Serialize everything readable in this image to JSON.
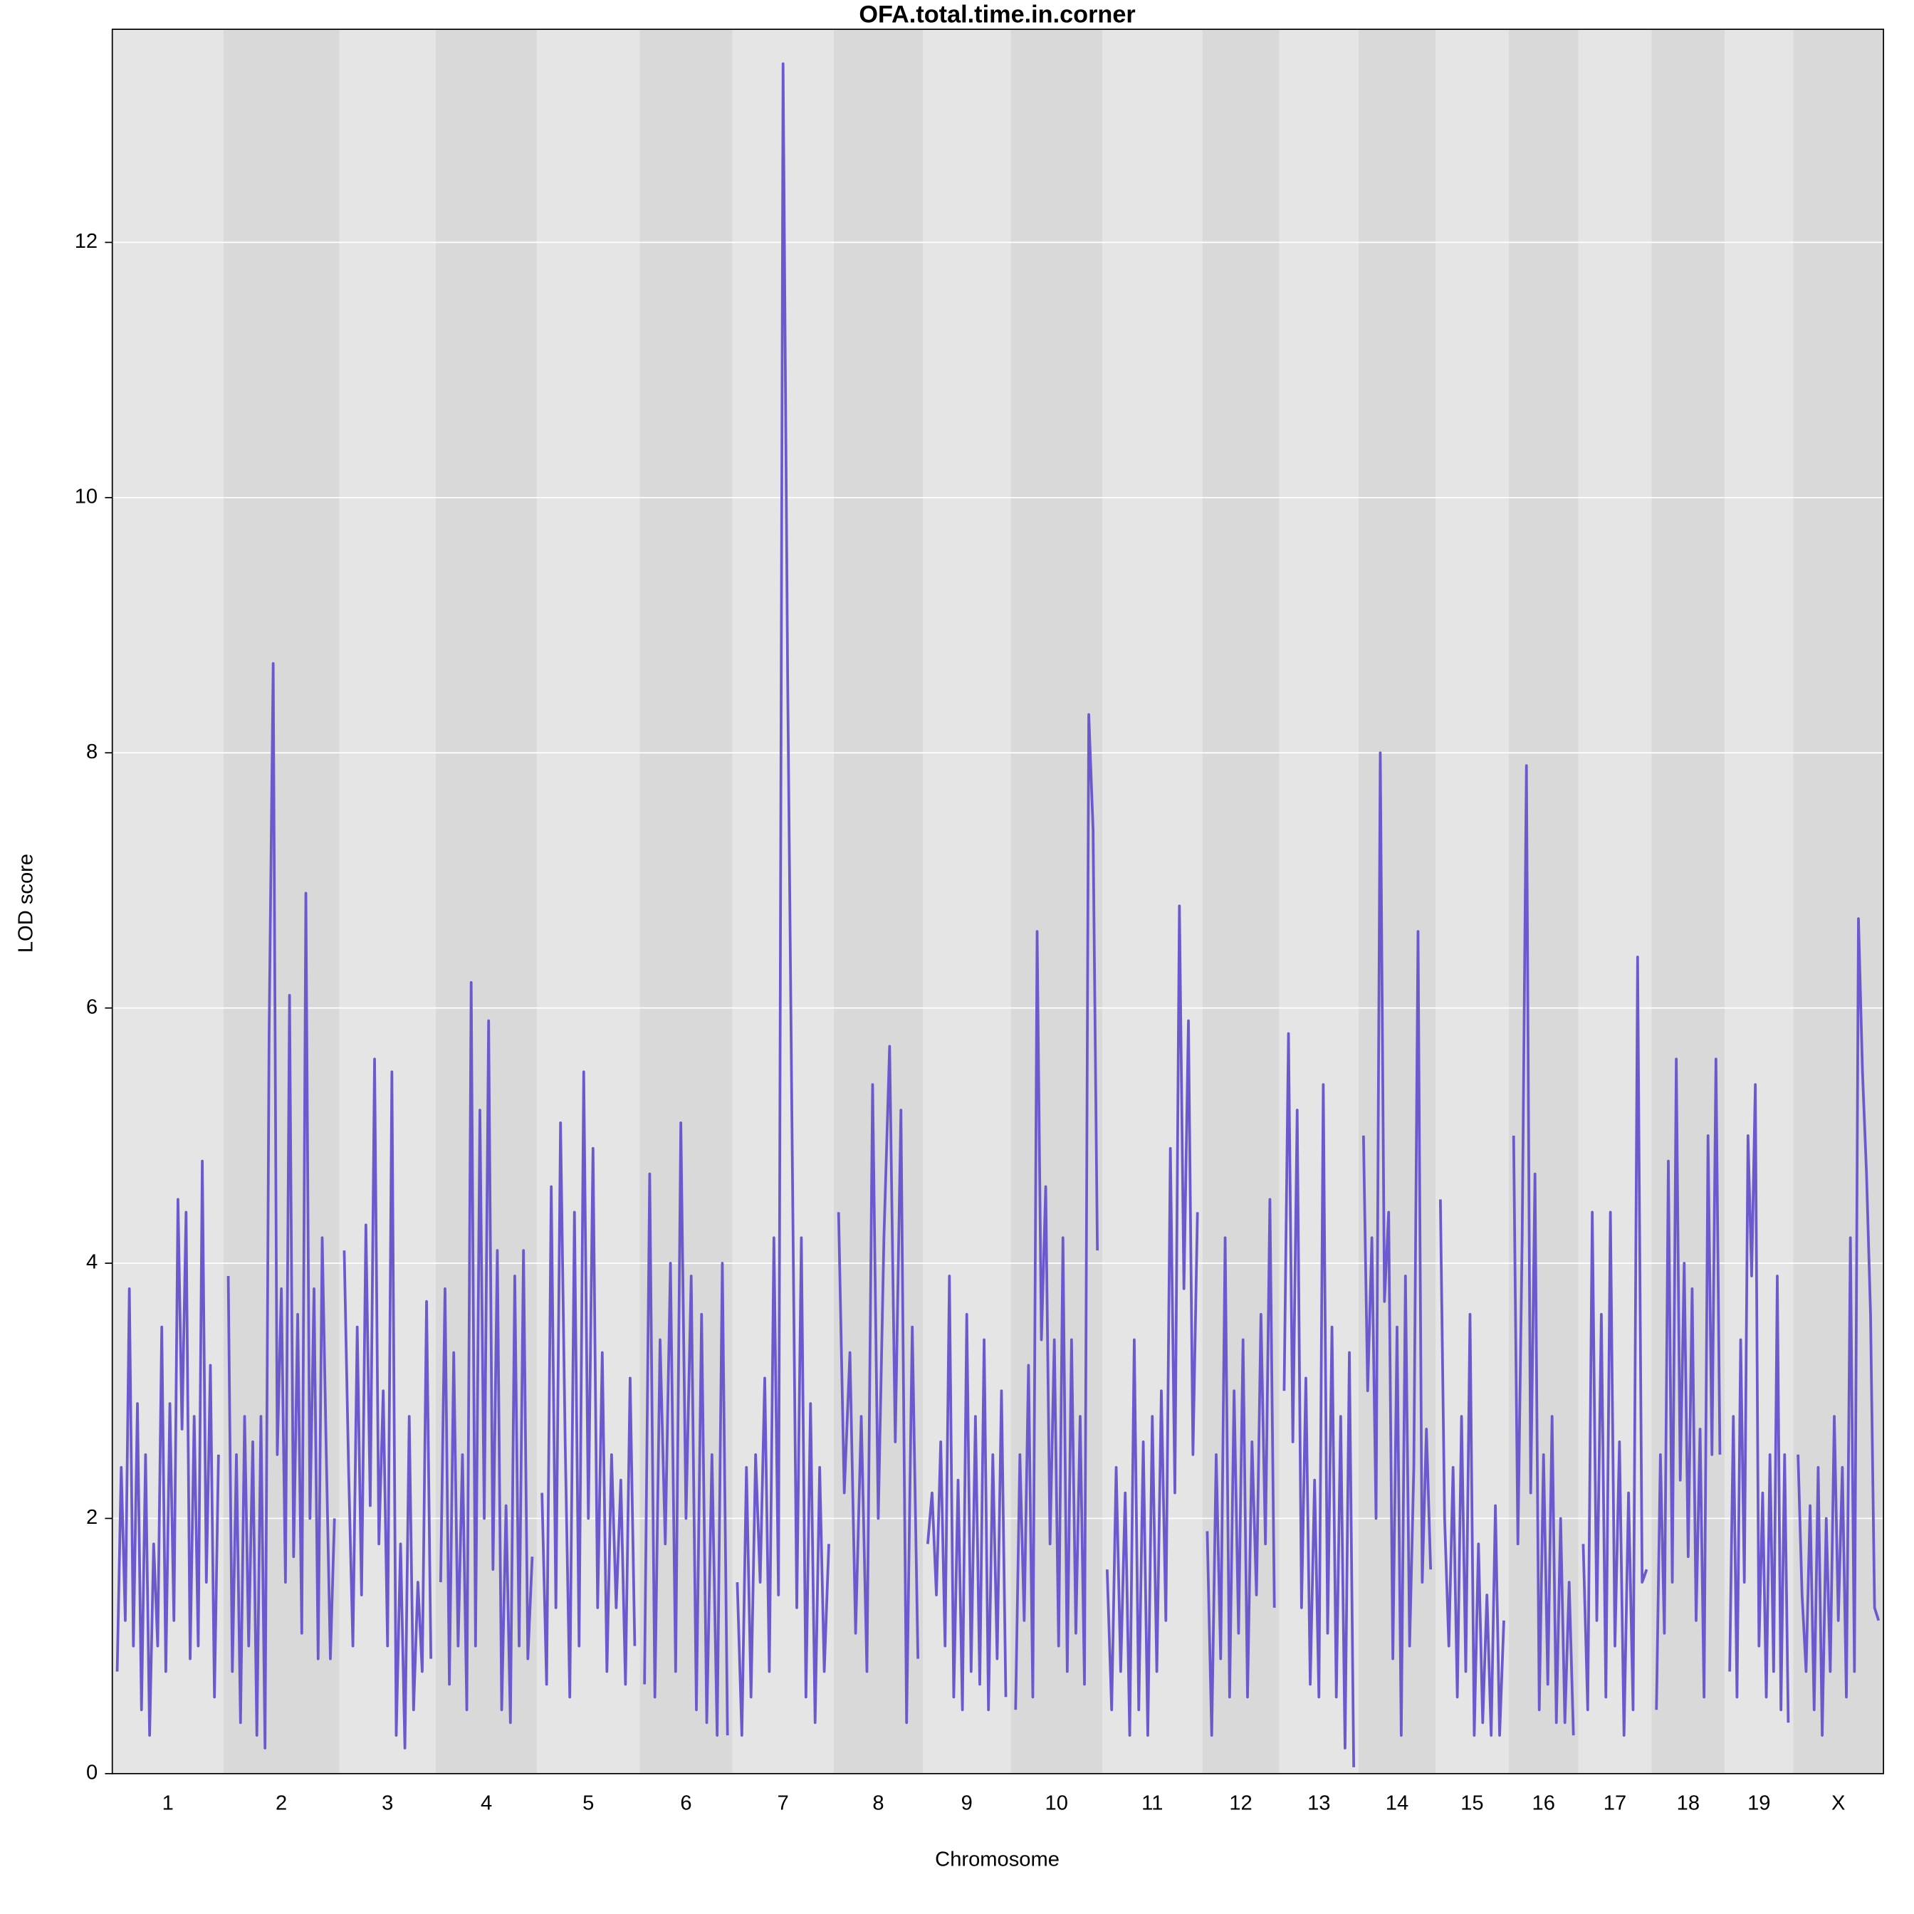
{
  "chart_data": {
    "type": "line",
    "title": "OFA.total.time.in.corner",
    "xlabel": "Chromosome",
    "ylabel": "LOD score",
    "color": "#6a5acd",
    "grid": true,
    "xlim": [
      0,
      1451
    ],
    "ylim": [
      0,
      13.67
    ],
    "yticks": [
      0,
      2,
      4,
      6,
      8,
      10,
      12
    ],
    "chromosomes": [
      {
        "name": "1",
        "start": 0,
        "end": 91,
        "values": [
          0.8,
          2.4,
          1.2,
          3.8,
          1.0,
          2.9,
          0.5,
          2.5,
          0.3,
          1.8,
          1.0,
          3.5,
          0.8,
          2.9,
          1.2,
          4.5,
          2.7,
          4.4,
          0.9,
          2.8,
          1.0,
          4.8,
          1.5,
          3.2,
          0.6,
          2.5
        ]
      },
      {
        "name": "2",
        "start": 91,
        "end": 186,
        "values": [
          3.9,
          0.8,
          2.5,
          0.4,
          2.8,
          1.0,
          2.6,
          0.3,
          2.8,
          0.2,
          5.8,
          8.7,
          2.5,
          3.8,
          1.5,
          6.1,
          1.7,
          3.6,
          1.1,
          6.9,
          2.0,
          3.8,
          0.9,
          4.2,
          2.5,
          0.9,
          2.0
        ]
      },
      {
        "name": "3",
        "start": 186,
        "end": 265,
        "values": [
          4.1,
          2.4,
          1.0,
          3.5,
          1.4,
          4.3,
          2.1,
          5.6,
          1.8,
          3.0,
          1.0,
          5.5,
          0.3,
          1.8,
          0.2,
          2.8,
          0.5,
          1.5,
          0.8,
          3.7,
          0.9
        ]
      },
      {
        "name": "4",
        "start": 265,
        "end": 348,
        "values": [
          1.5,
          3.8,
          0.7,
          3.3,
          1.0,
          2.5,
          0.5,
          6.2,
          1.0,
          5.2,
          2.0,
          5.9,
          1.6,
          4.1,
          0.5,
          2.1,
          0.4,
          3.9,
          1.0,
          4.1,
          0.9,
          1.7
        ]
      },
      {
        "name": "5",
        "start": 348,
        "end": 432,
        "values": [
          2.2,
          0.7,
          4.6,
          1.3,
          5.1,
          2.6,
          0.6,
          4.4,
          1.0,
          5.5,
          2.0,
          4.9,
          1.3,
          3.3,
          0.8,
          2.5,
          1.3,
          2.3,
          0.7,
          3.1,
          1.0
        ]
      },
      {
        "name": "6",
        "start": 432,
        "end": 508,
        "values": [
          0.7,
          4.7,
          0.6,
          3.4,
          1.8,
          4.0,
          0.8,
          5.1,
          2.0,
          3.9,
          0.5,
          3.6,
          0.4,
          2.5,
          0.3,
          4.0,
          0.3
        ]
      },
      {
        "name": "7",
        "start": 508,
        "end": 591,
        "values": [
          1.5,
          0.3,
          2.4,
          0.6,
          2.5,
          1.5,
          3.1,
          0.8,
          4.2,
          1.4,
          13.4,
          8.6,
          4.9,
          1.3,
          4.2,
          0.6,
          2.9,
          0.4,
          2.4,
          0.8,
          1.8
        ]
      },
      {
        "name": "8",
        "start": 591,
        "end": 664,
        "values": [
          4.4,
          2.2,
          3.3,
          1.1,
          2.8,
          0.8,
          5.4,
          2.0,
          4.2,
          5.7,
          2.6,
          5.2,
          0.4,
          3.5,
          0.9
        ]
      },
      {
        "name": "9",
        "start": 664,
        "end": 736,
        "values": [
          1.8,
          2.2,
          1.4,
          2.6,
          1.0,
          3.9,
          0.6,
          2.3,
          0.5,
          3.6,
          0.8,
          2.8,
          0.7,
          3.4,
          0.5,
          2.5,
          0.9,
          3.0,
          0.6
        ]
      },
      {
        "name": "10",
        "start": 736,
        "end": 811,
        "values": [
          0.5,
          2.5,
          1.2,
          3.2,
          0.6,
          6.6,
          3.4,
          4.6,
          1.8,
          3.4,
          1.0,
          4.2,
          0.8,
          3.4,
          1.1,
          2.8,
          0.7,
          8.3,
          7.4,
          4.1
        ]
      },
      {
        "name": "11",
        "start": 811,
        "end": 893,
        "values": [
          1.6,
          0.5,
          2.4,
          0.8,
          2.2,
          0.3,
          3.4,
          0.5,
          2.6,
          0.3,
          2.8,
          0.8,
          3.0,
          1.2,
          4.9,
          2.2,
          6.8,
          3.8,
          5.9,
          2.5,
          4.4
        ]
      },
      {
        "name": "12",
        "start": 893,
        "end": 956,
        "values": [
          1.9,
          0.3,
          2.5,
          0.9,
          4.2,
          0.6,
          3.0,
          1.1,
          3.4,
          0.6,
          2.6,
          1.4,
          3.6,
          1.8,
          4.5,
          1.3
        ]
      },
      {
        "name": "13",
        "start": 956,
        "end": 1021,
        "values": [
          3.0,
          5.8,
          2.6,
          5.2,
          1.3,
          3.1,
          0.7,
          2.3,
          0.6,
          5.4,
          1.1,
          3.5,
          0.6,
          2.8,
          0.2,
          3.3,
          0.05
        ]
      },
      {
        "name": "14",
        "start": 1021,
        "end": 1084,
        "values": [
          5.0,
          3.0,
          4.2,
          2.0,
          8.0,
          3.7,
          4.4,
          0.9,
          3.5,
          0.3,
          3.9,
          1.0,
          2.4,
          6.6,
          1.5,
          2.7,
          1.6
        ]
      },
      {
        "name": "15",
        "start": 1084,
        "end": 1144,
        "values": [
          4.5,
          2.0,
          1.0,
          2.4,
          0.6,
          2.8,
          0.8,
          3.6,
          0.3,
          1.8,
          0.4,
          1.4,
          0.3,
          2.1,
          0.3,
          1.2
        ]
      },
      {
        "name": "16",
        "start": 1144,
        "end": 1201,
        "values": [
          5.0,
          1.8,
          4.2,
          7.9,
          2.2,
          4.7,
          0.5,
          2.5,
          0.7,
          2.8,
          0.4,
          2.0,
          0.4,
          1.5,
          0.3
        ]
      },
      {
        "name": "17",
        "start": 1201,
        "end": 1261,
        "values": [
          1.8,
          0.5,
          4.4,
          1.2,
          3.6,
          0.6,
          4.4,
          1.0,
          2.6,
          0.3,
          2.2,
          0.5,
          6.4,
          1.5,
          1.6
        ]
      },
      {
        "name": "18",
        "start": 1261,
        "end": 1321,
        "values": [
          0.5,
          2.5,
          1.1,
          4.8,
          1.5,
          5.6,
          2.3,
          4.0,
          1.7,
          3.8,
          1.2,
          2.7,
          0.6,
          5.0,
          2.5,
          5.6,
          2.5
        ]
      },
      {
        "name": "19",
        "start": 1321,
        "end": 1377,
        "values": [
          0.8,
          2.8,
          0.6,
          3.4,
          1.5,
          5.0,
          3.9,
          5.4,
          1.0,
          2.2,
          0.6,
          2.5,
          0.8,
          3.9,
          0.5,
          2.5,
          0.4
        ]
      },
      {
        "name": "X",
        "start": 1377,
        "end": 1451,
        "values": [
          2.5,
          1.4,
          0.8,
          2.1,
          0.5,
          2.4,
          0.3,
          2.0,
          0.8,
          2.8,
          1.2,
          2.4,
          0.6,
          4.2,
          0.8,
          6.7,
          5.5,
          4.7,
          3.6,
          1.3,
          1.2
        ]
      }
    ]
  }
}
